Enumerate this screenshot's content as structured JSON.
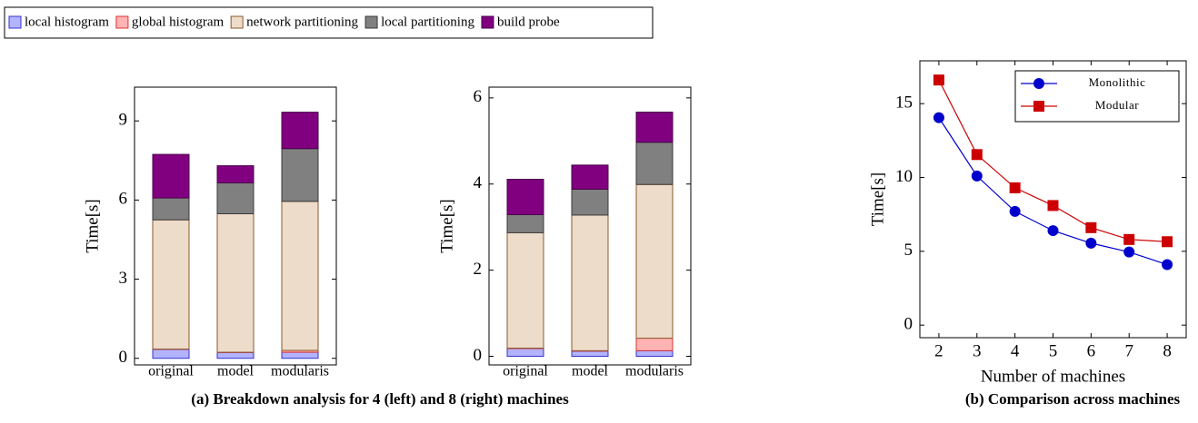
{
  "legend_title": null,
  "captions": [
    "(a) Breakdown analysis for 4 (left) and 8 (right) machines",
    "(b) Comparison across machines"
  ],
  "chart_data": [
    {
      "type": "bar",
      "stacked": true,
      "ylabel": "Time[s]",
      "categories": [
        "original",
        "model",
        "modularis"
      ],
      "ylim": [
        -0.25,
        10.28
      ],
      "yticks": [
        0,
        3,
        6,
        9
      ],
      "series": [
        {
          "name": "local histogram",
          "color": "#b3b3ff",
          "edge": "#3333cc",
          "values": [
            0.34,
            0.22,
            0.23
          ]
        },
        {
          "name": "global histogram",
          "color": "#ffb3b3",
          "edge": "#e03030",
          "values": [
            0.01,
            0.01,
            0.07
          ]
        },
        {
          "name": "network partitioning",
          "color": "#eedccb",
          "edge": "#8b5a2b",
          "values": [
            4.9,
            5.25,
            5.65
          ]
        },
        {
          "name": "local partitioning",
          "color": "#808080",
          "edge": "#3a3a3a",
          "values": [
            0.83,
            1.17,
            2.0
          ]
        },
        {
          "name": "build probe",
          "color": "#800080",
          "edge": "#4a004a",
          "values": [
            1.65,
            0.65,
            1.38
          ]
        }
      ]
    },
    {
      "type": "bar",
      "stacked": true,
      "ylabel": "Time[s]",
      "categories": [
        "original",
        "model",
        "modularis"
      ],
      "ylim": [
        -0.2,
        6.25
      ],
      "yticks": [
        0,
        2,
        4,
        6
      ],
      "series": [
        {
          "color": "#b3b3ff",
          "edge": "#3333cc",
          "values": [
            0.18,
            0.12,
            0.13
          ]
        },
        {
          "color": "#ffb3b3",
          "edge": "#e03030",
          "values": [
            0.01,
            0.01,
            0.29
          ]
        },
        {
          "color": "#eedccb",
          "edge": "#8b5a2b",
          "values": [
            2.68,
            3.15,
            3.57
          ]
        },
        {
          "color": "#808080",
          "edge": "#3a3a3a",
          "values": [
            0.42,
            0.6,
            0.98
          ]
        },
        {
          "color": "#800080",
          "edge": "#4a004a",
          "values": [
            0.82,
            0.56,
            0.7
          ]
        }
      ]
    },
    {
      "type": "line",
      "xlabel": "Number of machines",
      "ylabel": "Time[s]",
      "x": [
        2,
        3,
        4,
        5,
        6,
        7,
        8
      ],
      "xlim": [
        1.5,
        8.5
      ],
      "xticks": [
        2,
        3,
        4,
        5,
        6,
        7,
        8
      ],
      "ylim": [
        -0.85,
        17.9
      ],
      "yticks": [
        0,
        5,
        10,
        15
      ],
      "legend": "upper right",
      "series": [
        {
          "name": "Monolithic",
          "color": "#0000cc",
          "marker": "circle",
          "values": [
            14.05,
            10.1,
            7.7,
            6.4,
            5.55,
            4.95,
            4.1
          ]
        },
        {
          "name": "Modular",
          "color": "#cc0000",
          "marker": "square",
          "values": [
            16.6,
            11.55,
            9.3,
            8.1,
            6.6,
            5.8,
            5.65
          ]
        }
      ]
    }
  ]
}
